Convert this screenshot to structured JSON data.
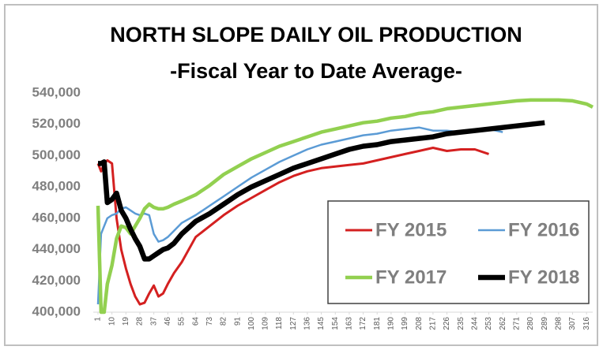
{
  "chart_data": {
    "type": "line",
    "title": "NORTH SLOPE DAILY OIL PRODUCTION",
    "subtitle": "-Fiscal Year to Date Average-",
    "x": [
      1,
      3,
      5,
      7,
      10,
      13,
      16,
      19,
      22,
      25,
      28,
      31,
      34,
      37,
      40,
      43,
      46,
      50,
      55,
      64,
      73,
      82,
      91,
      100,
      109,
      118,
      127,
      136,
      145,
      154,
      163,
      172,
      181,
      190,
      199,
      208,
      217,
      226,
      235,
      244,
      253,
      262,
      271,
      280,
      289,
      298,
      307,
      316,
      320
    ],
    "series": [
      {
        "name": "FY 2015",
        "color": "#d42020",
        "values": [
          495000,
          490000,
          495000,
          497000,
          495000,
          460000,
          440000,
          428000,
          418000,
          410000,
          405000,
          406000,
          412000,
          417000,
          410000,
          412000,
          418000,
          425000,
          432000,
          448000,
          455000,
          462000,
          468000,
          473000,
          478000,
          483000,
          487000,
          490000,
          492000,
          493000,
          494000,
          495000,
          497000,
          499000,
          501000,
          503000,
          505000,
          503000,
          504000,
          504000,
          501000,
          null,
          null,
          null,
          null,
          null,
          null,
          null,
          null
        ]
      },
      {
        "name": "FY 2016",
        "color": "#5b9bd5",
        "values": [
          405000,
          450000,
          455000,
          460000,
          462000,
          463000,
          466000,
          467000,
          465000,
          463000,
          462000,
          463000,
          462000,
          450000,
          445000,
          446000,
          448000,
          452000,
          457000,
          462000,
          468000,
          474000,
          480000,
          486000,
          491000,
          496000,
          500000,
          504000,
          507000,
          509000,
          511000,
          513000,
          514000,
          516000,
          517000,
          518000,
          516000,
          516000,
          515000,
          516000,
          517000,
          515000,
          null,
          null,
          null,
          null,
          null,
          null,
          null
        ]
      },
      {
        "name": "FY 2017",
        "color": "#92d050",
        "values": [
          468000,
          400000,
          400000,
          418000,
          430000,
          447000,
          455000,
          454000,
          450000,
          455000,
          460000,
          466000,
          469000,
          467000,
          466000,
          466000,
          467000,
          469000,
          471000,
          475000,
          481000,
          488000,
          493000,
          498000,
          502000,
          506000,
          509000,
          512000,
          515000,
          517000,
          519000,
          521000,
          522000,
          524000,
          525000,
          527000,
          528000,
          530000,
          531000,
          532000,
          533000,
          534000,
          535000,
          535500,
          535500,
          535500,
          535000,
          533000,
          531000
        ]
      },
      {
        "name": "FY 2018",
        "color": "#000000",
        "values": [
          495000,
          495000,
          496000,
          470000,
          472000,
          476000,
          465000,
          460000,
          453000,
          447000,
          442000,
          434000,
          434000,
          436000,
          438000,
          440000,
          441000,
          444000,
          450000,
          458000,
          463000,
          469000,
          475000,
          480000,
          484000,
          488000,
          492000,
          495000,
          498000,
          501000,
          504000,
          506000,
          507000,
          509000,
          510000,
          511000,
          512000,
          514000,
          515000,
          516000,
          517000,
          518000,
          519000,
          520000,
          521000,
          null,
          null,
          null,
          null
        ]
      }
    ],
    "xlim": [
      1,
      320
    ],
    "xticks": [
      1,
      10,
      19,
      28,
      37,
      46,
      55,
      64,
      73,
      82,
      91,
      100,
      109,
      118,
      127,
      136,
      145,
      154,
      163,
      172,
      181,
      190,
      199,
      208,
      217,
      226,
      235,
      244,
      253,
      262,
      271,
      280,
      289,
      298,
      307,
      316
    ],
    "ylim": [
      400000,
      540000
    ],
    "yticks": [
      {
        "value": 400000,
        "label": "400,000"
      },
      {
        "value": 420000,
        "label": "420,000"
      },
      {
        "value": 440000,
        "label": "440,000"
      },
      {
        "value": 460000,
        "label": "460,000"
      },
      {
        "value": 480000,
        "label": "480,000"
      },
      {
        "value": 500000,
        "label": "500,000"
      },
      {
        "value": 520000,
        "label": "520,000"
      },
      {
        "value": 540000,
        "label": "540,000"
      }
    ],
    "grid": false,
    "legend": "lower right"
  }
}
